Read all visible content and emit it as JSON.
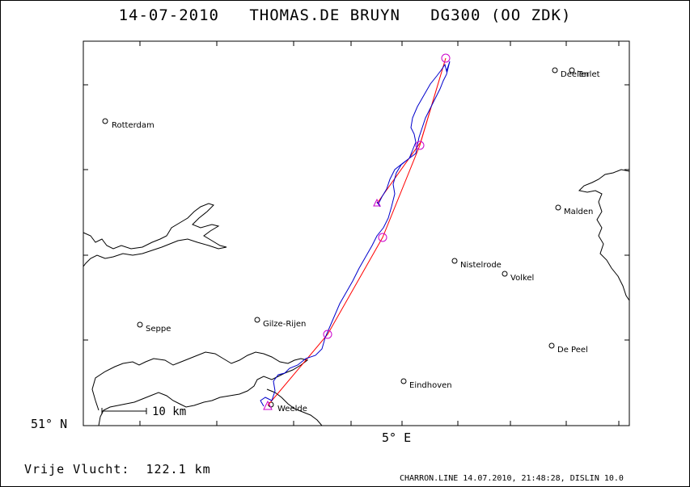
{
  "header": {
    "date": "14-07-2010",
    "pilot": "THOMAS.DE BRUYN",
    "glider": "DG300 (OO ZDK)"
  },
  "axes": {
    "lat_label": "51° N",
    "lon_label": "5° E"
  },
  "scale_bar": {
    "label": "10 km"
  },
  "distance": {
    "label": "Vrije Vlucht:",
    "value": "122.1 km"
  },
  "footer": {
    "text": "CHARRON.LINE 14.07.2010, 21:48:28, DISLIN 10.0"
  },
  "places": [
    {
      "name": "Rotterdam"
    },
    {
      "name": "Deelen"
    },
    {
      "name": "Terlet"
    },
    {
      "name": "Malden"
    },
    {
      "name": "Nistelrode"
    },
    {
      "name": "Volkel"
    },
    {
      "name": "Seppe"
    },
    {
      "name": "Gilze-Rijen"
    },
    {
      "name": "De Peel"
    },
    {
      "name": "Eindhoven"
    },
    {
      "name": "Weelde"
    }
  ],
  "colors": {
    "track": "#0000cc",
    "task": "#ff0000",
    "turnpoint": "#cc00cc",
    "coast": "#000000"
  }
}
